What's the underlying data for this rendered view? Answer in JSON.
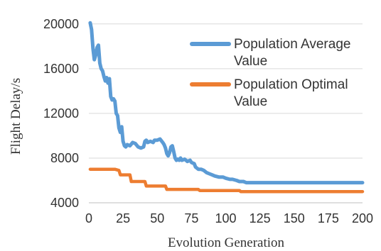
{
  "chart_data": {
    "type": "line",
    "xlabel": "Evolution Generation",
    "ylabel": "Flight Delay/s",
    "xlim": [
      0,
      200
    ],
    "ylim": [
      4000,
      21000
    ],
    "x_ticks": [
      "0",
      "25",
      "50",
      "75",
      "100",
      "125",
      "150",
      "175",
      "200"
    ],
    "y_ticks": [
      "4000",
      "8000",
      "12000",
      "16000",
      "20000"
    ],
    "grid": "horizontal",
    "legend_position": "top-right",
    "series": [
      {
        "name": "Population Average Value",
        "color": "#5b9bd5",
        "points": [
          [
            1,
            20100
          ],
          [
            2,
            19500
          ],
          [
            3,
            17800
          ],
          [
            4,
            16800
          ],
          [
            5,
            17200
          ],
          [
            6,
            17900
          ],
          [
            7,
            18100
          ],
          [
            8,
            16500
          ],
          [
            9,
            16000
          ],
          [
            10,
            15800
          ],
          [
            11,
            15300
          ],
          [
            12,
            14900
          ],
          [
            13,
            15200
          ],
          [
            14,
            14700
          ],
          [
            15,
            15100
          ],
          [
            16,
            13500
          ],
          [
            17,
            13200
          ],
          [
            18,
            13300
          ],
          [
            19,
            13100
          ],
          [
            20,
            12000
          ],
          [
            21,
            11800
          ],
          [
            22,
            10700
          ],
          [
            23,
            10300
          ],
          [
            24,
            10800
          ],
          [
            25,
            9500
          ],
          [
            26,
            9100
          ],
          [
            27,
            9000
          ],
          [
            28,
            9200
          ],
          [
            30,
            9100
          ],
          [
            32,
            9400
          ],
          [
            34,
            9300
          ],
          [
            36,
            9000
          ],
          [
            38,
            8900
          ],
          [
            40,
            9000
          ],
          [
            41,
            9500
          ],
          [
            42,
            9600
          ],
          [
            43,
            9400
          ],
          [
            45,
            9500
          ],
          [
            47,
            9400
          ],
          [
            48,
            9600
          ],
          [
            50,
            9600
          ],
          [
            52,
            9700
          ],
          [
            54,
            9400
          ],
          [
            55,
            9200
          ],
          [
            56,
            8900
          ],
          [
            57,
            8400
          ],
          [
            58,
            8200
          ],
          [
            59,
            8500
          ],
          [
            60,
            9000
          ],
          [
            61,
            9100
          ],
          [
            62,
            8600
          ],
          [
            63,
            8000
          ],
          [
            64,
            7800
          ],
          [
            65,
            7900
          ],
          [
            66,
            7800
          ],
          [
            67,
            8000
          ],
          [
            68,
            7800
          ],
          [
            70,
            7900
          ],
          [
            72,
            7700
          ],
          [
            74,
            7800
          ],
          [
            75,
            7600
          ],
          [
            77,
            7500
          ],
          [
            78,
            7200
          ],
          [
            80,
            7000
          ],
          [
            82,
            7000
          ],
          [
            84,
            6900
          ],
          [
            86,
            6700
          ],
          [
            88,
            6600
          ],
          [
            90,
            6500
          ],
          [
            92,
            6400
          ],
          [
            95,
            6300
          ],
          [
            98,
            6300
          ],
          [
            100,
            6200
          ],
          [
            103,
            6100
          ],
          [
            105,
            6100
          ],
          [
            108,
            6000
          ],
          [
            110,
            5900
          ],
          [
            113,
            5900
          ],
          [
            115,
            5800
          ],
          [
            120,
            5800
          ],
          [
            130,
            5800
          ],
          [
            140,
            5800
          ],
          [
            150,
            5800
          ],
          [
            160,
            5800
          ],
          [
            170,
            5800
          ],
          [
            180,
            5800
          ],
          [
            190,
            5800
          ],
          [
            200,
            5800
          ]
        ]
      },
      {
        "name": "Population Optimal Value",
        "color": "#ed7d31",
        "points": [
          [
            1,
            7000
          ],
          [
            10,
            7000
          ],
          [
            19,
            7000
          ],
          [
            22,
            6900
          ],
          [
            23,
            6500
          ],
          [
            30,
            6500
          ],
          [
            31,
            5900
          ],
          [
            41,
            5900
          ],
          [
            42,
            5500
          ],
          [
            56,
            5500
          ],
          [
            57,
            5200
          ],
          [
            80,
            5200
          ],
          [
            81,
            5100
          ],
          [
            110,
            5100
          ],
          [
            111,
            5000
          ],
          [
            150,
            5000
          ],
          [
            200,
            5000
          ]
        ]
      }
    ]
  }
}
